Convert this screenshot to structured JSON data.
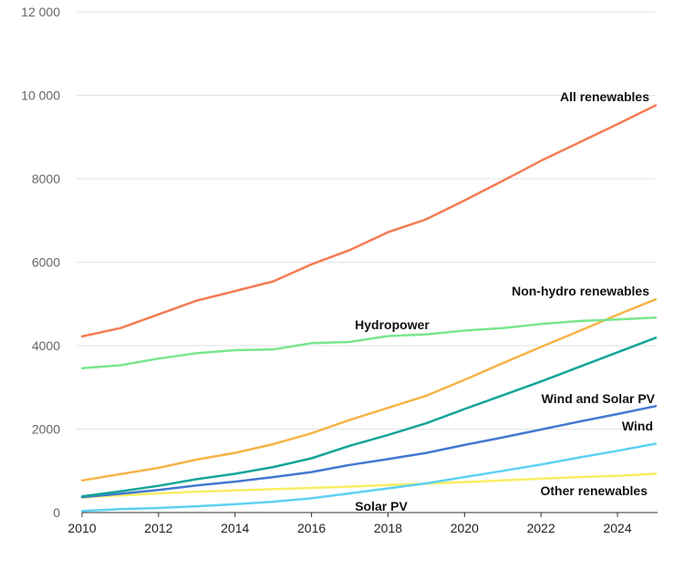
{
  "chart_data": {
    "type": "line",
    "title": "",
    "xlabel": "",
    "ylabel": "",
    "xlim": [
      2010,
      2025
    ],
    "ylim": [
      0,
      12000
    ],
    "grid": true,
    "legend": "none",
    "x_ticks": [
      "2010",
      "2012",
      "2014",
      "2016",
      "2018",
      "2020",
      "2022",
      "2024"
    ],
    "y_ticks": [
      "0",
      "2000",
      "4000",
      "6000",
      "8000",
      "10 000",
      "12 000"
    ],
    "x": [
      2010,
      2011,
      2012,
      2013,
      2014,
      2015,
      2016,
      2017,
      2018,
      2019,
      2020,
      2021,
      2022,
      2023,
      2024,
      2025
    ],
    "series": [
      {
        "name": "All renewables",
        "color": "#f47c54",
        "values": [
          4220,
          4420,
          4750,
          5080,
          5310,
          5540,
          5950,
          6290,
          6720,
          7030,
          7480,
          7950,
          8430,
          8870,
          9310,
          9760
        ]
      },
      {
        "name": "Hydropower",
        "color": "#78e68c",
        "values": [
          3460,
          3530,
          3690,
          3820,
          3890,
          3910,
          4060,
          4090,
          4230,
          4270,
          4360,
          4420,
          4520,
          4590,
          4630,
          4670
        ]
      },
      {
        "name": "Non-hydro renewables",
        "color": "#f6b447",
        "values": [
          770,
          920,
          1070,
          1270,
          1430,
          1640,
          1900,
          2220,
          2510,
          2800,
          3180,
          3580,
          3970,
          4350,
          4740,
          5110
        ]
      },
      {
        "name": "Wind and Solar PV",
        "color": "#12a597",
        "values": [
          390,
          510,
          640,
          800,
          930,
          1090,
          1300,
          1600,
          1860,
          2140,
          2480,
          2810,
          3140,
          3490,
          3840,
          4190
        ]
      },
      {
        "name": "Wind",
        "color": "#4478d0",
        "values": [
          370,
          450,
          540,
          650,
          740,
          850,
          970,
          1140,
          1280,
          1430,
          1620,
          1800,
          1990,
          2180,
          2360,
          2550
        ]
      },
      {
        "name": "Solar PV",
        "color": "#5ed0f3",
        "values": [
          40,
          80,
          110,
          150,
          200,
          260,
          340,
          460,
          580,
          700,
          850,
          1000,
          1150,
          1320,
          1480,
          1650
        ]
      },
      {
        "name": "Other renewables",
        "color": "#f7ef63",
        "values": [
          360,
          410,
          460,
          500,
          530,
          560,
          590,
          620,
          660,
          690,
          730,
          770,
          810,
          850,
          880,
          930
        ]
      }
    ]
  }
}
